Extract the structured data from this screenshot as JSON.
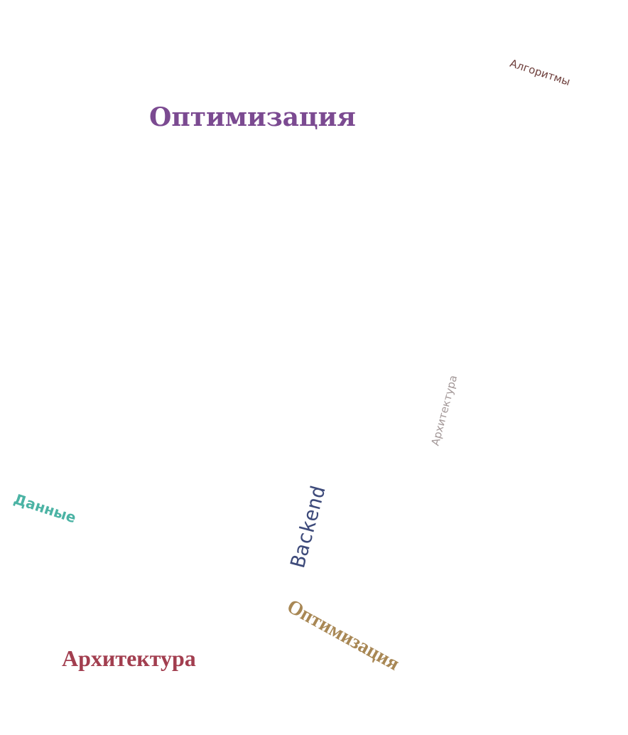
{
  "words": [
    {
      "text": "Оптимизация",
      "color": "#7b4a91"
    },
    {
      "text": "Алгоритмы",
      "color": "#6e3f3c"
    },
    {
      "text": "Архитектура",
      "color": "#a39898"
    },
    {
      "text": "Данные",
      "color": "#4bb3a4"
    },
    {
      "text": "Backend",
      "color": "#3d4a7a"
    },
    {
      "text": "Оптимизация",
      "color": "#a88754"
    },
    {
      "text": "Архитектура",
      "color": "#a23e4f"
    }
  ]
}
